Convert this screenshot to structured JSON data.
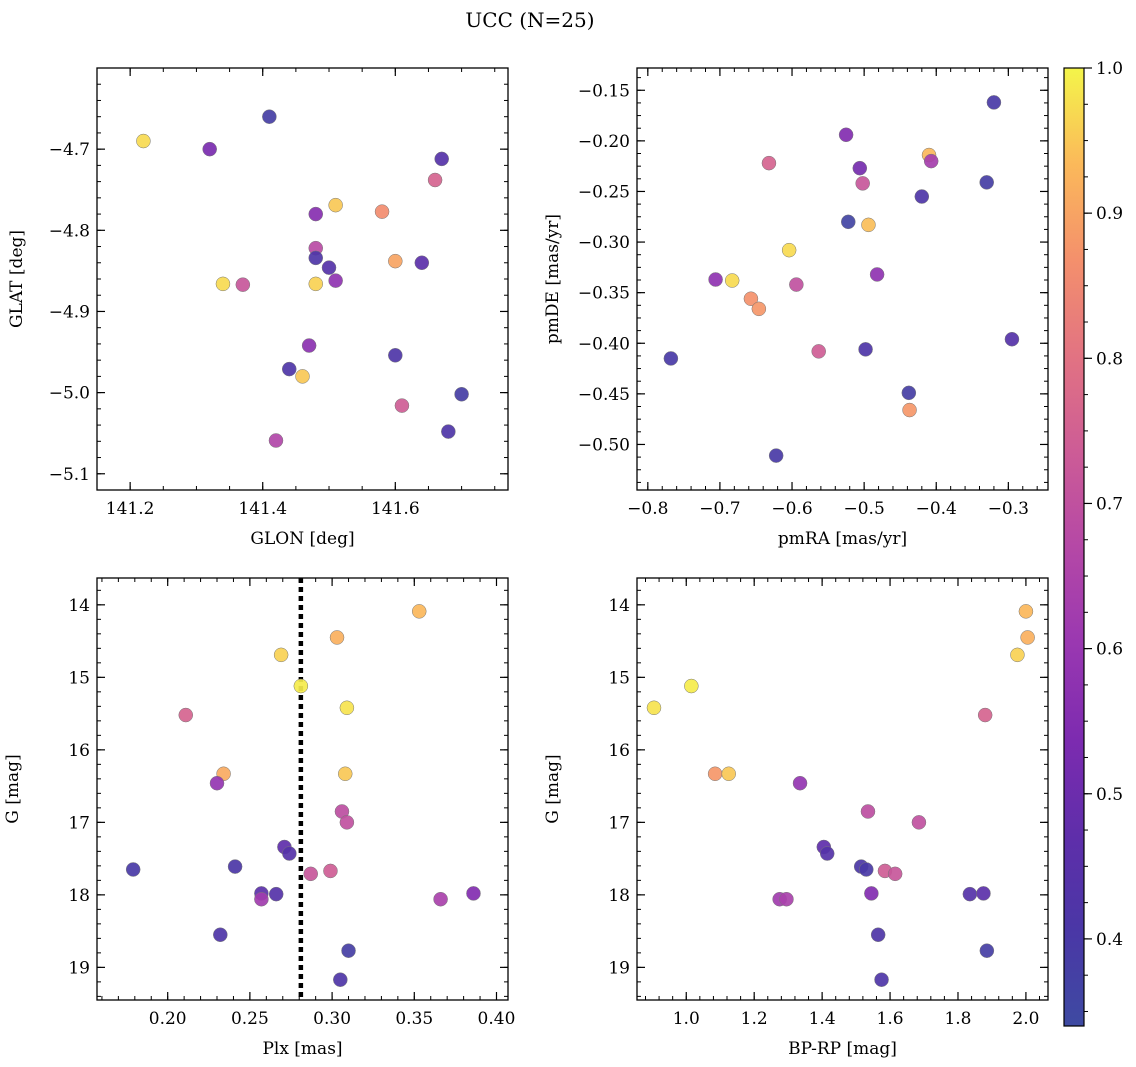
{
  "figure": {
    "title": "UCC (N=25)"
  },
  "colorbar": {
    "colormap": "plasma",
    "range": [
      0.34,
      1.0
    ],
    "ticks": [
      "0.4",
      "0.5",
      "0.6",
      "0.7",
      "0.8",
      "0.9",
      "1.0"
    ]
  },
  "chart_data": [
    {
      "type": "scatter",
      "id": "p1",
      "xlabel": "GLON [deg]",
      "ylabel": "GLAT [deg]",
      "xlim": [
        141.15,
        141.77
      ],
      "ylim": [
        -5.12,
        -4.6
      ],
      "yinvert": false,
      "xticks": [
        "141.2",
        "141.4",
        "141.6"
      ],
      "yticks": [
        "−4.7",
        "−4.8",
        "−4.9",
        "−5.0",
        "−5.1"
      ],
      "points": [
        {
          "x": 141.22,
          "y": -4.69,
          "c": 0.97
        },
        {
          "x": 141.32,
          "y": -4.7,
          "c": 0.53
        },
        {
          "x": 141.41,
          "y": -4.66,
          "c": 0.38
        },
        {
          "x": 141.67,
          "y": -4.712,
          "c": 0.44
        },
        {
          "x": 141.66,
          "y": -4.738,
          "c": 0.76
        },
        {
          "x": 141.51,
          "y": -4.769,
          "c": 0.95
        },
        {
          "x": 141.48,
          "y": -4.78,
          "c": 0.56
        },
        {
          "x": 141.58,
          "y": -4.777,
          "c": 0.86
        },
        {
          "x": 141.48,
          "y": -4.822,
          "c": 0.68
        },
        {
          "x": 141.48,
          "y": -4.834,
          "c": 0.42
        },
        {
          "x": 141.5,
          "y": -4.846,
          "c": 0.44
        },
        {
          "x": 141.6,
          "y": -4.838,
          "c": 0.9
        },
        {
          "x": 141.64,
          "y": -4.84,
          "c": 0.46
        },
        {
          "x": 141.34,
          "y": -4.866,
          "c": 0.97
        },
        {
          "x": 141.37,
          "y": -4.867,
          "c": 0.72
        },
        {
          "x": 141.48,
          "y": -4.866,
          "c": 0.96
        },
        {
          "x": 141.51,
          "y": -4.862,
          "c": 0.58
        },
        {
          "x": 141.47,
          "y": -4.942,
          "c": 0.57
        },
        {
          "x": 141.6,
          "y": -4.954,
          "c": 0.42
        },
        {
          "x": 141.44,
          "y": -4.971,
          "c": 0.42
        },
        {
          "x": 141.46,
          "y": -4.98,
          "c": 0.95
        },
        {
          "x": 141.7,
          "y": -5.002,
          "c": 0.38
        },
        {
          "x": 141.61,
          "y": -5.016,
          "c": 0.74
        },
        {
          "x": 141.68,
          "y": -5.048,
          "c": 0.42
        },
        {
          "x": 141.42,
          "y": -5.059,
          "c": 0.66
        }
      ]
    },
    {
      "type": "scatter",
      "id": "p2",
      "xlabel": "pmRA [mas/yr]",
      "ylabel": "pmDE [mas/yr]",
      "xlim": [
        -0.815,
        -0.245
      ],
      "ylim": [
        -0.545,
        -0.128
      ],
      "yinvert": false,
      "xticks": [
        "−0.8",
        "−0.7",
        "−0.6",
        "−0.5",
        "−0.4",
        "−0.3"
      ],
      "yticks": [
        "−0.15",
        "−0.20",
        "−0.25",
        "−0.30",
        "−0.35",
        "−0.40",
        "−0.45",
        "−0.50"
      ],
      "points": [
        {
          "x": -0.32,
          "y": -0.162,
          "c": 0.4
        },
        {
          "x": -0.525,
          "y": -0.194,
          "c": 0.55
        },
        {
          "x": -0.632,
          "y": -0.222,
          "c": 0.76
        },
        {
          "x": -0.41,
          "y": -0.214,
          "c": 0.93
        },
        {
          "x": -0.407,
          "y": -0.22,
          "c": 0.63
        },
        {
          "x": -0.506,
          "y": -0.227,
          "c": 0.52
        },
        {
          "x": -0.502,
          "y": -0.242,
          "c": 0.72
        },
        {
          "x": -0.33,
          "y": -0.241,
          "c": 0.38
        },
        {
          "x": -0.42,
          "y": -0.255,
          "c": 0.42
        },
        {
          "x": -0.522,
          "y": -0.28,
          "c": 0.36
        },
        {
          "x": -0.494,
          "y": -0.283,
          "c": 0.94
        },
        {
          "x": -0.604,
          "y": -0.308,
          "c": 0.97
        },
        {
          "x": -0.482,
          "y": -0.332,
          "c": 0.58
        },
        {
          "x": -0.706,
          "y": -0.337,
          "c": 0.58
        },
        {
          "x": -0.683,
          "y": -0.338,
          "c": 0.97
        },
        {
          "x": -0.594,
          "y": -0.342,
          "c": 0.7
        },
        {
          "x": -0.657,
          "y": -0.356,
          "c": 0.87
        },
        {
          "x": -0.646,
          "y": -0.366,
          "c": 0.88
        },
        {
          "x": -0.295,
          "y": -0.396,
          "c": 0.44
        },
        {
          "x": -0.563,
          "y": -0.408,
          "c": 0.74
        },
        {
          "x": -0.498,
          "y": -0.406,
          "c": 0.42
        },
        {
          "x": -0.768,
          "y": -0.415,
          "c": 0.4
        },
        {
          "x": -0.438,
          "y": -0.449,
          "c": 0.38
        },
        {
          "x": -0.437,
          "y": -0.466,
          "c": 0.88
        },
        {
          "x": -0.622,
          "y": -0.511,
          "c": 0.4
        }
      ]
    },
    {
      "type": "scatter",
      "id": "p3",
      "xlabel": "Plx [mas]",
      "ylabel": "G [mag]",
      "xlim": [
        0.157,
        0.407
      ],
      "ylim": [
        13.63,
        19.45
      ],
      "yinvert": true,
      "xticks": [
        "0.20",
        "0.25",
        "0.30",
        "0.35",
        "0.40"
      ],
      "yticks": [
        "14",
        "15",
        "16",
        "17",
        "18",
        "19"
      ],
      "vline": 0.281,
      "points": [
        {
          "x": 0.353,
          "y": 14.09,
          "c": 0.93
        },
        {
          "x": 0.303,
          "y": 14.45,
          "c": 0.92
        },
        {
          "x": 0.269,
          "y": 14.69,
          "c": 0.96
        },
        {
          "x": 0.281,
          "y": 15.12,
          "c": 0.99
        },
        {
          "x": 0.309,
          "y": 15.42,
          "c": 0.98
        },
        {
          "x": 0.211,
          "y": 15.52,
          "c": 0.76
        },
        {
          "x": 0.234,
          "y": 16.33,
          "c": 0.91
        },
        {
          "x": 0.308,
          "y": 16.33,
          "c": 0.95
        },
        {
          "x": 0.23,
          "y": 16.46,
          "c": 0.59
        },
        {
          "x": 0.306,
          "y": 16.85,
          "c": 0.69
        },
        {
          "x": 0.309,
          "y": 17.0,
          "c": 0.7
        },
        {
          "x": 0.271,
          "y": 17.34,
          "c": 0.47
        },
        {
          "x": 0.274,
          "y": 17.43,
          "c": 0.44
        },
        {
          "x": 0.179,
          "y": 17.65,
          "c": 0.4
        },
        {
          "x": 0.241,
          "y": 17.61,
          "c": 0.41
        },
        {
          "x": 0.299,
          "y": 17.67,
          "c": 0.74
        },
        {
          "x": 0.287,
          "y": 17.71,
          "c": 0.72
        },
        {
          "x": 0.257,
          "y": 17.98,
          "c": 0.46
        },
        {
          "x": 0.266,
          "y": 17.99,
          "c": 0.44
        },
        {
          "x": 0.386,
          "y": 17.98,
          "c": 0.55
        },
        {
          "x": 0.257,
          "y": 18.06,
          "c": 0.62
        },
        {
          "x": 0.366,
          "y": 18.06,
          "c": 0.64
        },
        {
          "x": 0.232,
          "y": 18.55,
          "c": 0.42
        },
        {
          "x": 0.31,
          "y": 18.77,
          "c": 0.38
        },
        {
          "x": 0.305,
          "y": 19.17,
          "c": 0.42
        }
      ]
    },
    {
      "type": "scatter",
      "id": "p4",
      "xlabel": "BP-RP [mag]",
      "ylabel": "G [mag]",
      "xlim": [
        0.855,
        2.065
      ],
      "ylim": [
        13.63,
        19.45
      ],
      "yinvert": true,
      "xticks": [
        "1.0",
        "1.2",
        "1.4",
        "1.6",
        "1.8",
        "2.0"
      ],
      "yticks": [
        "14",
        "15",
        "16",
        "17",
        "18",
        "19"
      ],
      "points": [
        {
          "x": 2.0,
          "y": 14.09,
          "c": 0.93
        },
        {
          "x": 2.005,
          "y": 14.45,
          "c": 0.92
        },
        {
          "x": 1.975,
          "y": 14.69,
          "c": 0.96
        },
        {
          "x": 1.015,
          "y": 15.12,
          "c": 0.99
        },
        {
          "x": 0.905,
          "y": 15.42,
          "c": 0.98
        },
        {
          "x": 1.88,
          "y": 15.52,
          "c": 0.76
        },
        {
          "x": 1.085,
          "y": 16.33,
          "c": 0.88
        },
        {
          "x": 1.125,
          "y": 16.33,
          "c": 0.95
        },
        {
          "x": 1.335,
          "y": 16.46,
          "c": 0.59
        },
        {
          "x": 1.535,
          "y": 16.85,
          "c": 0.69
        },
        {
          "x": 1.685,
          "y": 17.0,
          "c": 0.7
        },
        {
          "x": 1.405,
          "y": 17.34,
          "c": 0.47
        },
        {
          "x": 1.415,
          "y": 17.43,
          "c": 0.44
        },
        {
          "x": 1.515,
          "y": 17.61,
          "c": 0.41
        },
        {
          "x": 1.53,
          "y": 17.65,
          "c": 0.4
        },
        {
          "x": 1.585,
          "y": 17.67,
          "c": 0.74
        },
        {
          "x": 1.615,
          "y": 17.71,
          "c": 0.72
        },
        {
          "x": 1.545,
          "y": 17.98,
          "c": 0.55
        },
        {
          "x": 1.835,
          "y": 17.99,
          "c": 0.44
        },
        {
          "x": 1.875,
          "y": 17.98,
          "c": 0.46
        },
        {
          "x": 1.275,
          "y": 18.06,
          "c": 0.62
        },
        {
          "x": 1.295,
          "y": 18.06,
          "c": 0.64
        },
        {
          "x": 1.565,
          "y": 18.55,
          "c": 0.42
        },
        {
          "x": 1.885,
          "y": 18.77,
          "c": 0.38
        },
        {
          "x": 1.575,
          "y": 19.17,
          "c": 0.42
        }
      ]
    }
  ]
}
